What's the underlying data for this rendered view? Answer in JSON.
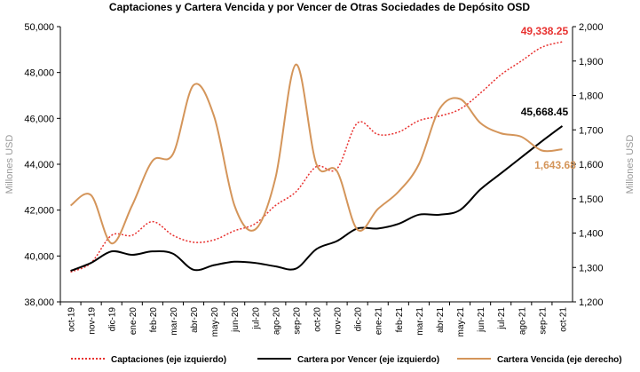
{
  "chart_data": {
    "type": "line",
    "title": "Captaciones y Cartera Vencida y por Vencer de Otras Sociedades de Depósito OSD",
    "ylabel": "Millones USD",
    "y2label": "Millones USD",
    "categories": [
      "oct-19",
      "nov-19",
      "dic-19",
      "ene-20",
      "feb-20",
      "mar-20",
      "abr-20",
      "may-20",
      "jun-20",
      "jul-20",
      "ago-20",
      "sep-20",
      "oct-20",
      "nov-20",
      "dic-20",
      "ene-21",
      "feb-21",
      "mar-21",
      "abr-21",
      "may-21",
      "jun-21",
      "jul-21",
      "ago-21",
      "sep-21",
      "oct-21"
    ],
    "ylim": [
      38000,
      50000
    ],
    "yticks": [
      {
        "value": 38000,
        "label": "38,000"
      },
      {
        "value": 40000,
        "label": "40,000"
      },
      {
        "value": 42000,
        "label": "42,000"
      },
      {
        "value": 44000,
        "label": "44,000"
      },
      {
        "value": 46000,
        "label": "46,000"
      },
      {
        "value": 48000,
        "label": "48,000"
      },
      {
        "value": 50000,
        "label": "50,000"
      }
    ],
    "y2lim": [
      1200,
      2000
    ],
    "y2ticks": [
      {
        "value": 1200,
        "label": "1,200"
      },
      {
        "value": 1300,
        "label": "1,300"
      },
      {
        "value": 1400,
        "label": "1,400"
      },
      {
        "value": 1500,
        "label": "1,500"
      },
      {
        "value": 1600,
        "label": "1,600"
      },
      {
        "value": 1700,
        "label": "1,700"
      },
      {
        "value": 1800,
        "label": "1,800"
      },
      {
        "value": 1900,
        "label": "1,900"
      },
      {
        "value": 2000,
        "label": "2,000"
      }
    ],
    "legend": "bottom",
    "series": [
      {
        "name": "Captaciones (eje izquierdo)",
        "color": "#e8312f",
        "dash": "dotted",
        "values": [
          39300,
          39700,
          40900,
          40900,
          41500,
          40900,
          40600,
          40700,
          41100,
          41400,
          42200,
          42800,
          43900,
          43800,
          45800,
          45300,
          45400,
          45900,
          46100,
          46400,
          47100,
          47900,
          48500,
          49100,
          49338.25
        ],
        "value_labels": [
          null,
          null,
          null,
          null,
          null,
          null,
          null,
          null,
          null,
          null,
          null,
          null,
          null,
          null,
          null,
          null,
          null,
          null,
          null,
          null,
          null,
          null,
          null,
          null,
          "49,338.25"
        ]
      },
      {
        "name": "Cartera por Vencer (eje izquierdo)",
        "color": "#000000",
        "dash": "solid",
        "values": [
          39350,
          39700,
          40200,
          40050,
          40200,
          40100,
          39400,
          39600,
          39750,
          39700,
          39550,
          39450,
          40300,
          40650,
          41200,
          41200,
          41400,
          41800,
          41800,
          42000,
          42900,
          43600,
          44300,
          45000,
          45668.45
        ],
        "value_labels": [
          null,
          null,
          null,
          null,
          null,
          null,
          null,
          null,
          null,
          null,
          null,
          null,
          null,
          null,
          null,
          null,
          null,
          null,
          null,
          null,
          null,
          null,
          null,
          null,
          "45,668.45"
        ]
      },
      {
        "name": "Cartera Vencida (eje derecho)",
        "color": "#d4955a",
        "dash": "solid",
        "axis": "y2",
        "values": [
          1480,
          1510,
          1370,
          1480,
          1610,
          1630,
          1830,
          1740,
          1480,
          1410,
          1560,
          1890,
          1600,
          1580,
          1410,
          1470,
          1520,
          1600,
          1760,
          1790,
          1720,
          1690,
          1680,
          1640,
          1643.68
        ],
        "value_labels": [
          null,
          null,
          null,
          null,
          null,
          null,
          null,
          null,
          null,
          null,
          null,
          null,
          null,
          null,
          null,
          null,
          null,
          null,
          null,
          null,
          null,
          null,
          null,
          null,
          "1,643.68"
        ]
      }
    ]
  }
}
